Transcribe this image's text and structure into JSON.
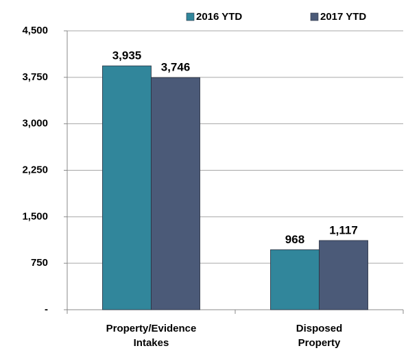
{
  "chart_data": {
    "type": "bar",
    "categories": [
      "Property/Evidence\nIntakes",
      "Disposed\nProperty"
    ],
    "series": [
      {
        "name": "2016 YTD",
        "color": "#31869b",
        "values": [
          3935,
          968
        ],
        "value_labels": [
          "3,935",
          "968"
        ]
      },
      {
        "name": "2017 YTD",
        "color": "#4b5a78",
        "values": [
          3746,
          1117
        ],
        "value_labels": [
          "3,746",
          "1,117"
        ]
      }
    ],
    "ylim": [
      0,
      4500
    ],
    "yticks": [
      {
        "value": 0,
        "label": "-"
      },
      750,
      {
        "value": 1500,
        "label": "1,500"
      },
      {
        "value": 2250,
        "label": "2,250"
      },
      {
        "value": 3000,
        "label": "3,000"
      },
      {
        "value": 3750,
        "label": "3,750"
      },
      {
        "value": 4500,
        "label": "4,500"
      }
    ],
    "grid": true,
    "legend": "top-right"
  }
}
